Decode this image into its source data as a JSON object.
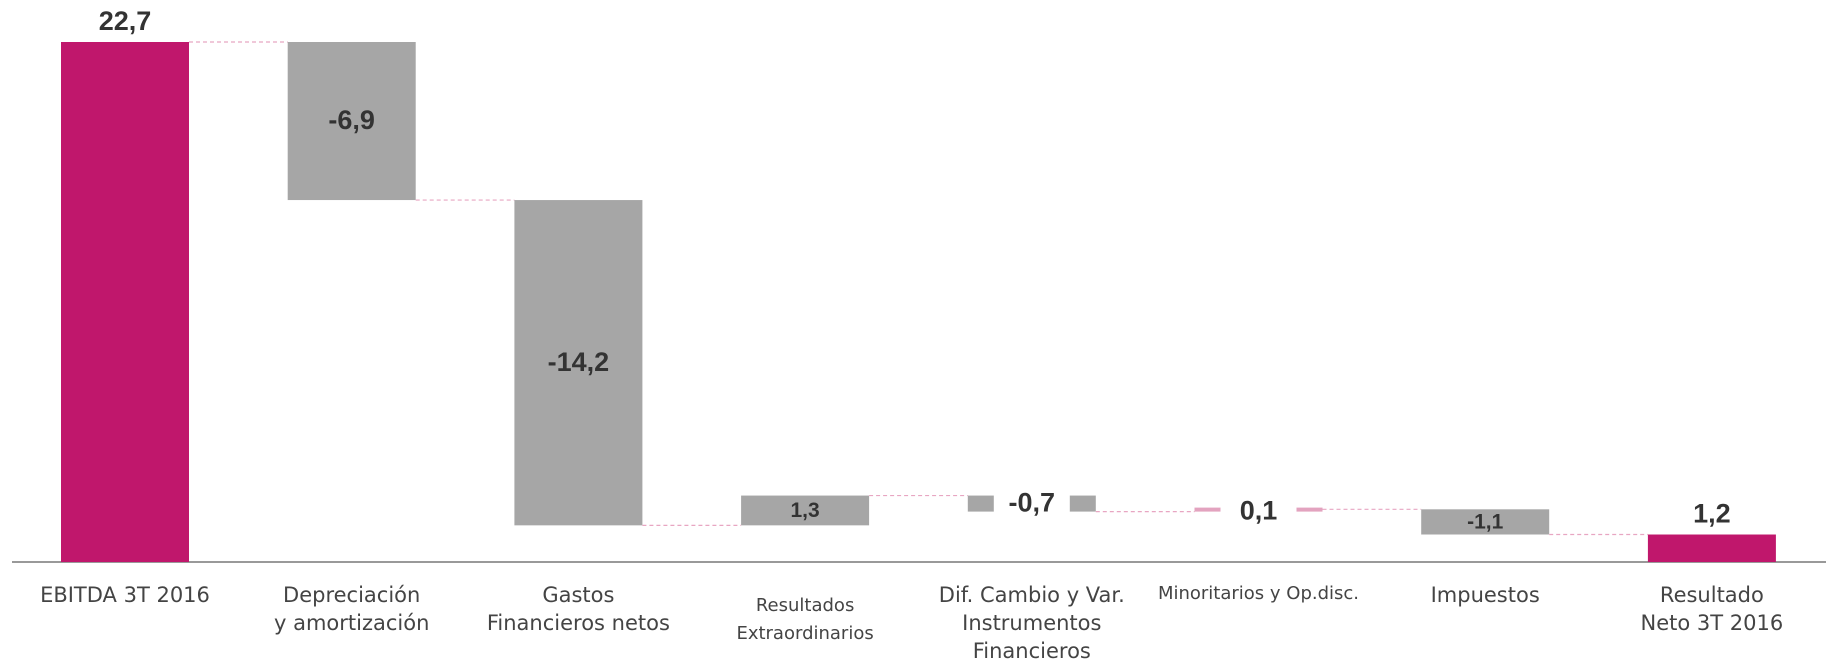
{
  "chart_data": {
    "type": "waterfall",
    "categories": [
      [
        "EBITDA 3T 2016"
      ],
      [
        "Depreciación",
        "y amortización"
      ],
      [
        "Gastos",
        "Financieros netos"
      ],
      [
        "Resultados",
        "Extraordinarios"
      ],
      [
        "Dif. Cambio y Var.",
        "Instrumentos",
        "Financieros"
      ],
      [
        "Minoritarios y Op.disc."
      ],
      [
        "Impuestos"
      ],
      [
        "Resultado",
        "Neto 3T 2016"
      ]
    ],
    "values": [
      22.7,
      -6.9,
      -14.2,
      1.3,
      -0.7,
      0.1,
      -1.1,
      1.2
    ],
    "value_labels": [
      "22,7",
      "-6,9",
      "-14,2",
      "1,3",
      "-0,7",
      "0,1",
      "-1,1",
      "1,2"
    ],
    "measure": [
      "total",
      "relative",
      "relative",
      "relative",
      "relative",
      "relative",
      "relative",
      "total"
    ],
    "colors": [
      "#c0176c",
      "#a6a6a6",
      "#a6a6a6",
      "#a6a6a6",
      "#a6a6a6",
      "#e3a3bf",
      "#a6a6a6",
      "#c0176c"
    ]
  }
}
